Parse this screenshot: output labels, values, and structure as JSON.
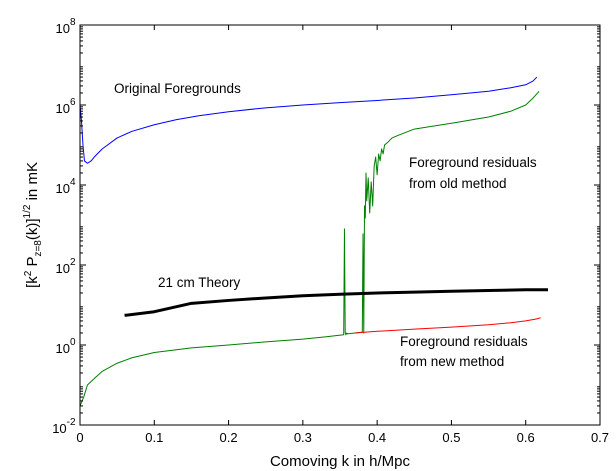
{
  "chart_data": {
    "type": "line",
    "xlabel": "Comoving k in h/Mpc",
    "ylabel": "[k² P_z=8(k)]^1/2 in mK",
    "ylabel_parts": {
      "open": "[k",
      "sq": "2",
      "p": " P",
      "sub": "z=8",
      "mid": "(k)]",
      "sup": "1/2",
      "end": " in mK"
    },
    "xlim": [
      0,
      0.7
    ],
    "ylim": [
      0.01,
      100000000
    ],
    "yscale": "log",
    "grid": false,
    "x_ticks": [
      0,
      0.1,
      0.2,
      0.3,
      0.4,
      0.5,
      0.6,
      0.7
    ],
    "x_tick_labels": [
      "0",
      "0.1",
      "0.2",
      "0.3",
      "0.4",
      "0.5",
      "0.6",
      "0.7"
    ],
    "y_ticks": [
      0.01,
      1,
      100,
      10000,
      1000000,
      100000000
    ],
    "y_tick_labels": [
      {
        "base": "10",
        "exp": "-2"
      },
      {
        "base": "10",
        "exp": "0"
      },
      {
        "base": "10",
        "exp": "2"
      },
      {
        "base": "10",
        "exp": "4"
      },
      {
        "base": "10",
        "exp": "6"
      },
      {
        "base": "10",
        "exp": "8"
      }
    ],
    "series": [
      {
        "name": "Original Foregrounds",
        "color": "#0000ff",
        "x": [
          0,
          0.002,
          0.004,
          0.006,
          0.01,
          0.015,
          0.02,
          0.03,
          0.05,
          0.07,
          0.1,
          0.13,
          0.16,
          0.2,
          0.25,
          0.3,
          0.35,
          0.4,
          0.45,
          0.5,
          0.55,
          0.58,
          0.6,
          0.61,
          0.615
        ],
        "y": [
          1000000,
          400000,
          100000,
          40000,
          35000,
          40000,
          52000,
          80000,
          150000,
          220000,
          320000,
          430000,
          540000,
          680000,
          850000,
          1000000,
          1150000,
          1300000,
          1500000,
          1800000,
          2200000,
          2700000,
          3200000,
          4000000,
          5000000
        ]
      },
      {
        "name": "Foreground residuals from old method",
        "color": "#007f00",
        "x": [
          0,
          0.005,
          0.01,
          0.02,
          0.03,
          0.05,
          0.07,
          0.1,
          0.15,
          0.2,
          0.25,
          0.3,
          0.33,
          0.355,
          0.356,
          0.357,
          0.358,
          0.359,
          0.36,
          0.37,
          0.38,
          0.381,
          0.382,
          0.383,
          0.384,
          0.385,
          0.386,
          0.388,
          0.39,
          0.392,
          0.394,
          0.396,
          0.398,
          0.4,
          0.402,
          0.404,
          0.406,
          0.408,
          0.41,
          0.415,
          0.42,
          0.43,
          0.45,
          0.5,
          0.55,
          0.58,
          0.6,
          0.61,
          0.618
        ],
        "y": [
          0.03,
          0.05,
          0.1,
          0.15,
          0.22,
          0.35,
          0.48,
          0.65,
          0.85,
          1.0,
          1.2,
          1.4,
          1.6,
          1.8,
          800,
          2,
          1.8,
          2,
          1.9,
          2,
          2.1,
          600,
          2,
          3000,
          1500,
          20000,
          4000,
          15000,
          2000,
          12000,
          3000,
          30000,
          50000,
          18000,
          60000,
          40000,
          80000,
          60000,
          100000,
          120000,
          150000,
          180000,
          250000,
          350000,
          500000,
          700000,
          1000000,
          1500000,
          2200000
        ]
      },
      {
        "name": "Foreground residuals from new method",
        "color": "#ff0000",
        "x": [
          0.37,
          0.4,
          0.45,
          0.5,
          0.55,
          0.58,
          0.6,
          0.615,
          0.62
        ],
        "y": [
          2.0,
          2.2,
          2.5,
          2.8,
          3.2,
          3.6,
          4.0,
          4.5,
          4.8
        ]
      },
      {
        "name": "21 cm Theory",
        "color": "#000000",
        "x": [
          0.06,
          0.1,
          0.15,
          0.2,
          0.25,
          0.3,
          0.35,
          0.4,
          0.45,
          0.5,
          0.55,
          0.6,
          0.63
        ],
        "y": [
          5.5,
          6.8,
          11,
          13,
          15,
          17,
          18.5,
          20,
          21,
          22,
          23,
          24,
          24
        ]
      }
    ],
    "annotations": [
      {
        "id": "orig",
        "text": "Original Foregrounds"
      },
      {
        "id": "old1",
        "text": "Foreground residuals"
      },
      {
        "id": "old2",
        "text": "from old method"
      },
      {
        "id": "theory",
        "text": "21 cm Theory"
      },
      {
        "id": "new1",
        "text": "Foreground residuals"
      },
      {
        "id": "new2",
        "text": "from new method"
      }
    ]
  }
}
